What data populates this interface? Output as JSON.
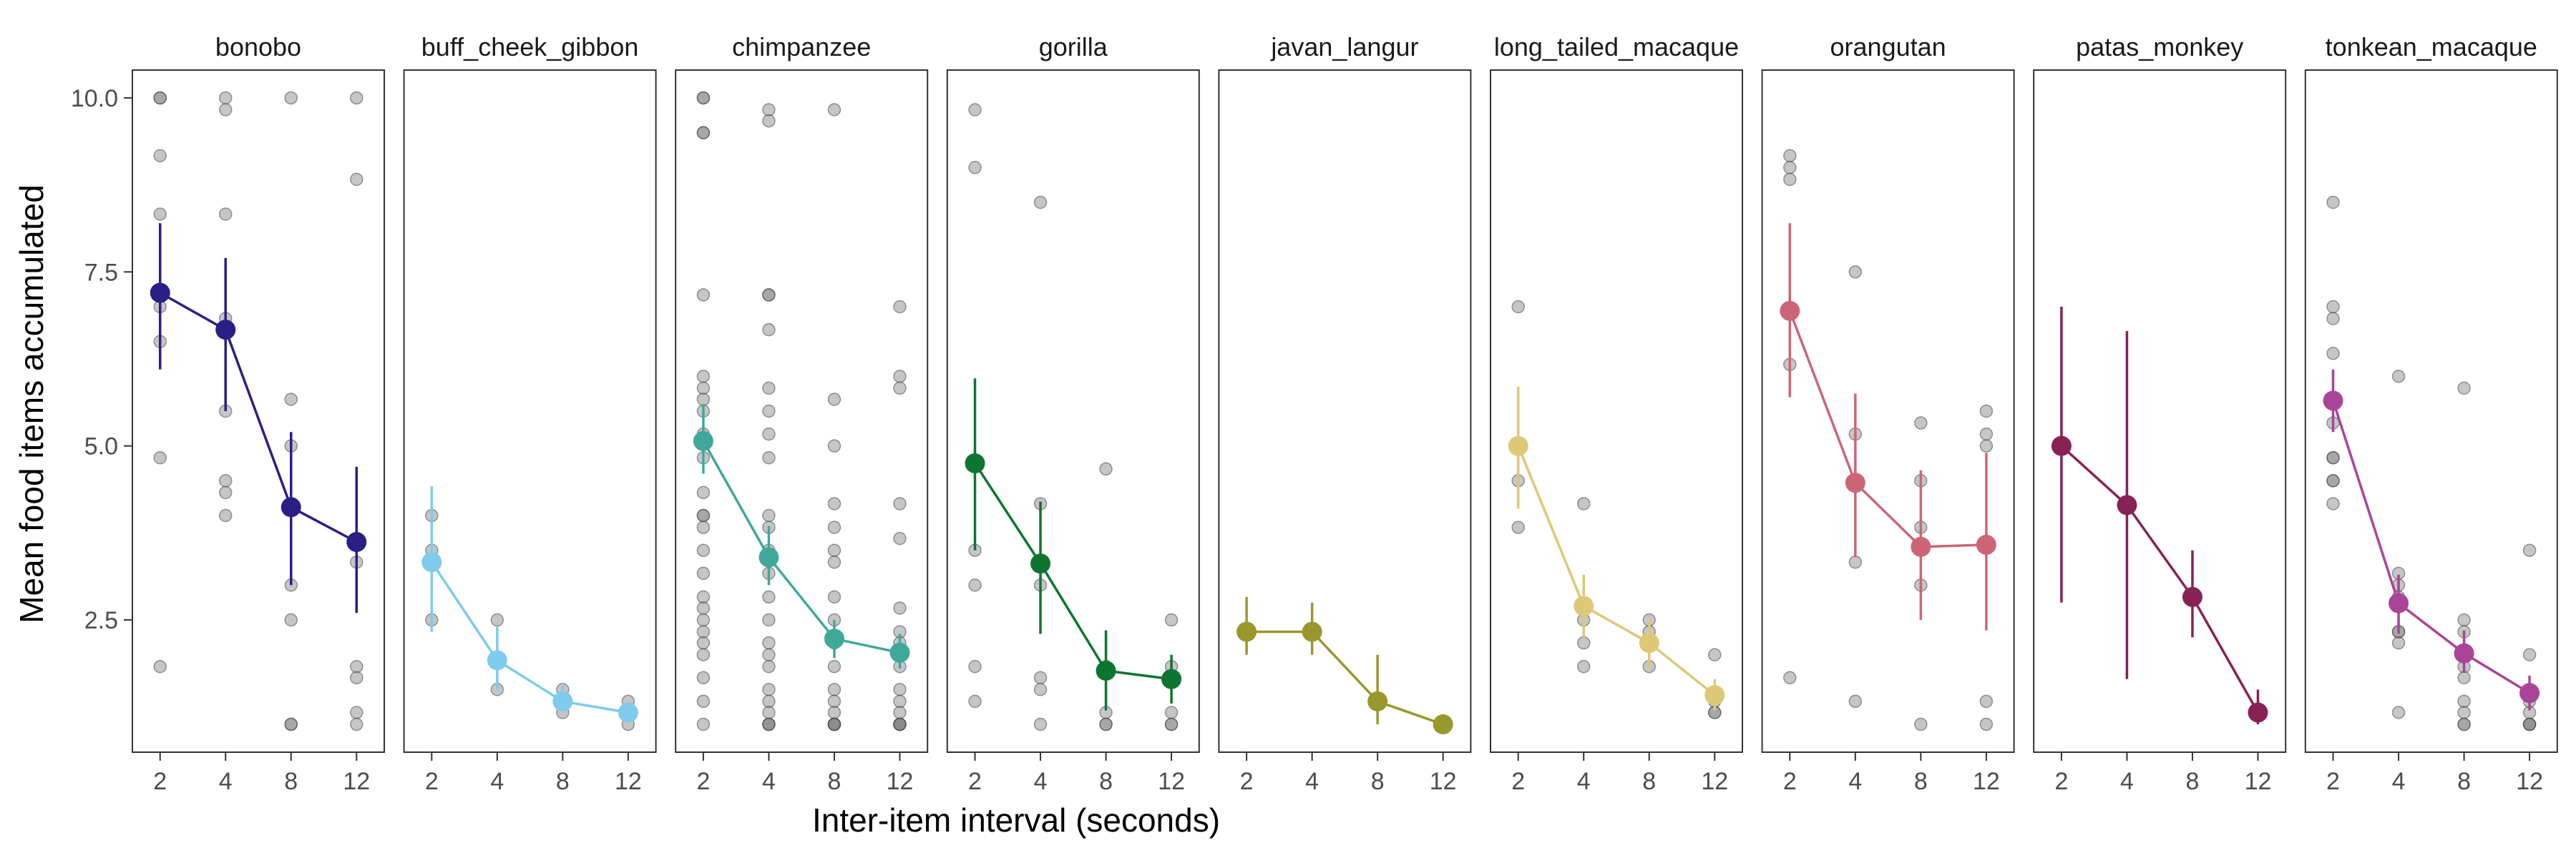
{
  "chart_data": {
    "type": "scatter",
    "xlabel": "Inter-item interval (seconds)",
    "ylabel": "Mean food items accumulated",
    "x_ticks": [
      2,
      4,
      8,
      12
    ],
    "y_ticks": [
      2.5,
      5.0,
      7.5,
      10.0
    ],
    "y_tick_labels": [
      "2.5",
      "5.0",
      "7.5",
      "10.0"
    ],
    "ylim": [
      0.6,
      10.4
    ],
    "grid": false,
    "panels": [
      {
        "name": "bonobo",
        "color": "#2a1f86",
        "means": [
          {
            "x": 2,
            "y": 7.2,
            "lo": 6.1,
            "hi": 8.2
          },
          {
            "x": 4,
            "y": 6.67,
            "lo": 5.5,
            "hi": 7.7
          },
          {
            "x": 8,
            "y": 4.12,
            "lo": 3.0,
            "hi": 5.2
          },
          {
            "x": 12,
            "y": 3.62,
            "lo": 2.6,
            "hi": 4.7
          }
        ],
        "points": [
          [
            2,
            10.0
          ],
          [
            2,
            10.0
          ],
          [
            2,
            9.17
          ],
          [
            2,
            8.33
          ],
          [
            2,
            7.0
          ],
          [
            2,
            6.5
          ],
          [
            2,
            4.83
          ],
          [
            2,
            1.83
          ],
          [
            4,
            10.0
          ],
          [
            4,
            9.83
          ],
          [
            4,
            8.33
          ],
          [
            4,
            6.83
          ],
          [
            4,
            5.5
          ],
          [
            4,
            4.5
          ],
          [
            4,
            4.33
          ],
          [
            4,
            4.0
          ],
          [
            8,
            10.0
          ],
          [
            8,
            5.67
          ],
          [
            8,
            5.0
          ],
          [
            8,
            3.0
          ],
          [
            8,
            2.5
          ],
          [
            8,
            1.0
          ],
          [
            8,
            1.0
          ],
          [
            12,
            10.0
          ],
          [
            12,
            8.83
          ],
          [
            12,
            3.33
          ],
          [
            12,
            1.83
          ],
          [
            12,
            1.67
          ],
          [
            12,
            1.17
          ],
          [
            12,
            1.0
          ]
        ]
      },
      {
        "name": "buff_cheek_gibbon",
        "color": "#7ecbee",
        "means": [
          {
            "x": 2,
            "y": 3.33,
            "lo": 2.33,
            "hi": 4.42
          },
          {
            "x": 4,
            "y": 1.92,
            "lo": 1.5,
            "hi": 2.4
          },
          {
            "x": 8,
            "y": 1.33,
            "lo": 1.17,
            "hi": 1.55
          },
          {
            "x": 12,
            "y": 1.17,
            "lo": 1.05,
            "hi": 1.3
          }
        ],
        "points": [
          [
            2,
            4.0
          ],
          [
            2,
            3.5
          ],
          [
            2,
            2.5
          ],
          [
            4,
            2.5
          ],
          [
            4,
            1.5
          ],
          [
            8,
            1.5
          ],
          [
            8,
            1.17
          ],
          [
            12,
            1.33
          ],
          [
            12,
            1.0
          ]
        ]
      },
      {
        "name": "chimpanzee",
        "color": "#3ea99a",
        "means": [
          {
            "x": 2,
            "y": 5.07,
            "lo": 4.6,
            "hi": 5.6
          },
          {
            "x": 4,
            "y": 3.4,
            "lo": 3.0,
            "hi": 3.85
          },
          {
            "x": 8,
            "y": 2.23,
            "lo": 1.95,
            "hi": 2.5
          },
          {
            "x": 12,
            "y": 2.03,
            "lo": 1.8,
            "hi": 2.3
          }
        ],
        "points": [
          [
            2,
            10.0
          ],
          [
            2,
            10.0
          ],
          [
            2,
            9.5
          ],
          [
            2,
            9.5
          ],
          [
            2,
            7.17
          ],
          [
            2,
            6.0
          ],
          [
            2,
            5.83
          ],
          [
            2,
            5.67
          ],
          [
            2,
            5.5
          ],
          [
            2,
            5.17
          ],
          [
            2,
            4.83
          ],
          [
            2,
            4.33
          ],
          [
            2,
            4.0
          ],
          [
            2,
            4.0
          ],
          [
            2,
            3.83
          ],
          [
            2,
            3.5
          ],
          [
            2,
            3.17
          ],
          [
            2,
            2.83
          ],
          [
            2,
            2.67
          ],
          [
            2,
            2.5
          ],
          [
            2,
            2.33
          ],
          [
            2,
            2.17
          ],
          [
            2,
            2.0
          ],
          [
            2,
            1.67
          ],
          [
            2,
            1.33
          ],
          [
            2,
            1.0
          ],
          [
            4,
            9.83
          ],
          [
            4,
            9.67
          ],
          [
            4,
            7.17
          ],
          [
            4,
            7.17
          ],
          [
            4,
            6.67
          ],
          [
            4,
            5.83
          ],
          [
            4,
            5.5
          ],
          [
            4,
            5.17
          ],
          [
            4,
            4.83
          ],
          [
            4,
            4.0
          ],
          [
            4,
            3.83
          ],
          [
            4,
            3.5
          ],
          [
            4,
            3.17
          ],
          [
            4,
            2.83
          ],
          [
            4,
            2.5
          ],
          [
            4,
            2.17
          ],
          [
            4,
            2.0
          ],
          [
            4,
            1.83
          ],
          [
            4,
            1.5
          ],
          [
            4,
            1.33
          ],
          [
            4,
            1.17
          ],
          [
            4,
            1.0
          ],
          [
            4,
            1.0
          ],
          [
            4,
            1.0
          ],
          [
            8,
            9.83
          ],
          [
            8,
            5.67
          ],
          [
            8,
            5.0
          ],
          [
            8,
            4.17
          ],
          [
            8,
            3.83
          ],
          [
            8,
            3.5
          ],
          [
            8,
            3.33
          ],
          [
            8,
            2.83
          ],
          [
            8,
            2.5
          ],
          [
            8,
            2.17
          ],
          [
            8,
            1.83
          ],
          [
            8,
            1.5
          ],
          [
            8,
            1.33
          ],
          [
            8,
            1.17
          ],
          [
            8,
            1.0
          ],
          [
            8,
            1.0
          ],
          [
            8,
            1.0
          ],
          [
            8,
            1.0
          ],
          [
            12,
            7.0
          ],
          [
            12,
            6.0
          ],
          [
            12,
            5.83
          ],
          [
            12,
            4.17
          ],
          [
            12,
            3.67
          ],
          [
            12,
            2.67
          ],
          [
            12,
            2.33
          ],
          [
            12,
            2.17
          ],
          [
            12,
            1.83
          ],
          [
            12,
            1.5
          ],
          [
            12,
            1.33
          ],
          [
            12,
            1.17
          ],
          [
            12,
            1.0
          ],
          [
            12,
            1.0
          ],
          [
            12,
            1.0
          ],
          [
            12,
            1.0
          ]
        ]
      },
      {
        "name": "gorilla",
        "color": "#0e7531",
        "means": [
          {
            "x": 2,
            "y": 4.75,
            "lo": 3.5,
            "hi": 5.97
          },
          {
            "x": 4,
            "y": 3.31,
            "lo": 2.3,
            "hi": 4.2
          },
          {
            "x": 8,
            "y": 1.77,
            "lo": 1.2,
            "hi": 2.35
          },
          {
            "x": 12,
            "y": 1.65,
            "lo": 1.3,
            "hi": 2.0
          }
        ],
        "points": [
          [
            2,
            9.83
          ],
          [
            2,
            9.0
          ],
          [
            2,
            3.5
          ],
          [
            2,
            3.0
          ],
          [
            2,
            1.83
          ],
          [
            2,
            1.33
          ],
          [
            4,
            8.5
          ],
          [
            4,
            4.17
          ],
          [
            4,
            3.0
          ],
          [
            4,
            1.67
          ],
          [
            4,
            1.5
          ],
          [
            4,
            1.0
          ],
          [
            8,
            4.67
          ],
          [
            8,
            1.83
          ],
          [
            8,
            1.17
          ],
          [
            8,
            1.0
          ],
          [
            8,
            1.0
          ],
          [
            12,
            2.5
          ],
          [
            12,
            1.83
          ],
          [
            12,
            1.17
          ],
          [
            12,
            1.0
          ],
          [
            12,
            1.0
          ]
        ]
      },
      {
        "name": "javan_langur",
        "color": "#99982d",
        "means": [
          {
            "x": 2,
            "y": 2.33,
            "lo": 2.0,
            "hi": 2.83
          },
          {
            "x": 4,
            "y": 2.33,
            "lo": 2.0,
            "hi": 2.75
          },
          {
            "x": 8,
            "y": 1.33,
            "lo": 1.0,
            "hi": 2.0
          },
          {
            "x": 12,
            "y": 1.0,
            "lo": 1.0,
            "hi": 1.0
          }
        ],
        "points": []
      },
      {
        "name": "long_tailed_macaque",
        "color": "#ddc877",
        "means": [
          {
            "x": 2,
            "y": 5.0,
            "lo": 4.1,
            "hi": 5.85
          },
          {
            "x": 4,
            "y": 2.7,
            "lo": 2.25,
            "hi": 3.15
          },
          {
            "x": 8,
            "y": 2.17,
            "lo": 1.8,
            "hi": 2.5
          },
          {
            "x": 12,
            "y": 1.42,
            "lo": 1.2,
            "hi": 1.65
          }
        ],
        "points": [
          [
            2,
            7.0
          ],
          [
            2,
            4.5
          ],
          [
            2,
            3.83
          ],
          [
            4,
            4.17
          ],
          [
            4,
            2.5
          ],
          [
            4,
            2.17
          ],
          [
            4,
            1.83
          ],
          [
            8,
            2.5
          ],
          [
            8,
            2.33
          ],
          [
            8,
            1.83
          ],
          [
            12,
            2.0
          ],
          [
            12,
            1.33
          ],
          [
            12,
            1.17
          ],
          [
            12,
            1.17
          ]
        ]
      },
      {
        "name": "orangutan",
        "color": "#cc6677",
        "means": [
          {
            "x": 2,
            "y": 6.94,
            "lo": 5.7,
            "hi": 8.2
          },
          {
            "x": 4,
            "y": 4.47,
            "lo": 3.4,
            "hi": 5.75
          },
          {
            "x": 8,
            "y": 3.55,
            "lo": 2.5,
            "hi": 4.65
          },
          {
            "x": 12,
            "y": 3.58,
            "lo": 2.35,
            "hi": 4.9
          }
        ],
        "points": [
          [
            2,
            9.17
          ],
          [
            2,
            9.0
          ],
          [
            2,
            8.83
          ],
          [
            2,
            6.17
          ],
          [
            2,
            1.67
          ],
          [
            4,
            7.5
          ],
          [
            4,
            5.17
          ],
          [
            4,
            3.33
          ],
          [
            4,
            1.33
          ],
          [
            8,
            5.33
          ],
          [
            8,
            4.5
          ],
          [
            8,
            3.83
          ],
          [
            8,
            3.0
          ],
          [
            8,
            1.0
          ],
          [
            12,
            5.5
          ],
          [
            12,
            5.17
          ],
          [
            12,
            5.0
          ],
          [
            12,
            1.33
          ],
          [
            12,
            1.0
          ]
        ]
      },
      {
        "name": "patas_monkey",
        "color": "#882255",
        "means": [
          {
            "x": 2,
            "y": 5.0,
            "lo": 2.75,
            "hi": 7.0
          },
          {
            "x": 4,
            "y": 4.15,
            "lo": 1.65,
            "hi": 6.65
          },
          {
            "x": 8,
            "y": 2.83,
            "lo": 2.25,
            "hi": 3.5
          },
          {
            "x": 12,
            "y": 1.17,
            "lo": 1.0,
            "hi": 1.5
          }
        ],
        "points": []
      },
      {
        "name": "tonkean_macaque",
        "color": "#aa4499",
        "means": [
          {
            "x": 2,
            "y": 5.65,
            "lo": 5.2,
            "hi": 6.1
          },
          {
            "x": 4,
            "y": 2.74,
            "lo": 2.3,
            "hi": 3.15
          },
          {
            "x": 8,
            "y": 2.02,
            "lo": 1.75,
            "hi": 2.35
          },
          {
            "x": 12,
            "y": 1.45,
            "lo": 1.2,
            "hi": 1.7
          }
        ],
        "points": [
          [
            2,
            8.5
          ],
          [
            2,
            7.0
          ],
          [
            2,
            6.83
          ],
          [
            2,
            6.33
          ],
          [
            2,
            5.33
          ],
          [
            2,
            4.83
          ],
          [
            2,
            4.83
          ],
          [
            2,
            4.5
          ],
          [
            2,
            4.5
          ],
          [
            2,
            4.17
          ],
          [
            4,
            6.0
          ],
          [
            4,
            3.17
          ],
          [
            4,
            3.0
          ],
          [
            4,
            2.83
          ],
          [
            4,
            2.33
          ],
          [
            4,
            2.33
          ],
          [
            4,
            2.17
          ],
          [
            4,
            1.17
          ],
          [
            8,
            5.83
          ],
          [
            8,
            2.5
          ],
          [
            8,
            2.33
          ],
          [
            8,
            2.0
          ],
          [
            8,
            1.83
          ],
          [
            8,
            1.67
          ],
          [
            8,
            1.33
          ],
          [
            8,
            1.17
          ],
          [
            8,
            1.0
          ],
          [
            8,
            1.0
          ],
          [
            12,
            3.5
          ],
          [
            12,
            2.0
          ],
          [
            12,
            1.33
          ],
          [
            12,
            1.17
          ],
          [
            12,
            1.0
          ],
          [
            12,
            1.0
          ],
          [
            12,
            1.0
          ]
        ]
      }
    ]
  }
}
